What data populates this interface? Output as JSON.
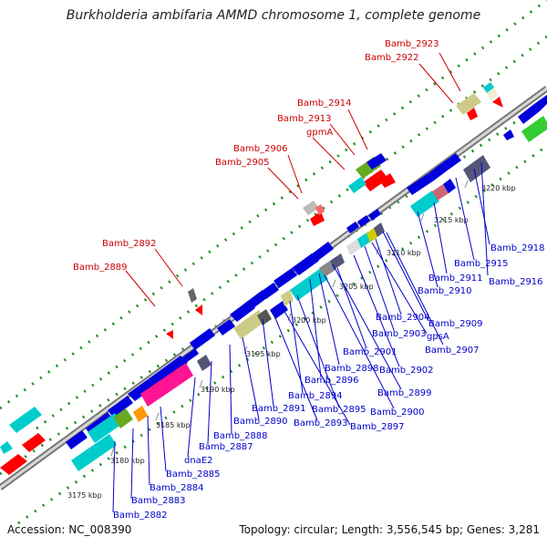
{
  "title": "Burkholderia ambifaria AMMD chromosome 1, complete genome",
  "footer": {
    "accession": "Accession: NC_008390",
    "summary": "Topology: circular; Length: 3,556,545 bp; Genes: 3,281"
  },
  "ticks": [
    "3175 kbp",
    "3180 kbp",
    "3185 kbp",
    "3190 kbp",
    "3195 kbp",
    "3200 kbp",
    "3205 kbp",
    "3210 kbp",
    "3215 kbp",
    "3220 kbp"
  ],
  "labels_top": [
    "Bamb_2923",
    "Bamb_2922",
    "Bamb_2914",
    "Bamb_2913",
    "gpmA",
    "Bamb_2906",
    "Bamb_2905",
    "Bamb_2892",
    "Bamb_2889"
  ],
  "labels_bottom": [
    "Bamb_2918",
    "Bamb_2915",
    "Bamb_2916",
    "Bamb_2911",
    "Bamb_2910",
    "Bamb_2904",
    "Bamb_2909",
    "Bamb_2903",
    "gpsA",
    "Bamb_2907",
    "Bamb_2901",
    "Bamb_2902",
    "Bamb_2898",
    "Bamb_2896",
    "Bamb_2899",
    "Bamb_2894",
    "Bamb_2895",
    "Bamb_2900",
    "Bamb_2891",
    "Bamb_2893",
    "Bamb_2897",
    "Bamb_2890",
    "Bamb_2888",
    "Bamb_2887",
    "dnaE2",
    "Bamb_2885",
    "Bamb_2884",
    "Bamb_2883",
    "Bamb_2882"
  ],
  "colors": {
    "forward_label": "#cc0000",
    "reverse_label": "#0000cc",
    "backbone": "#888888",
    "dots": "#228b22"
  }
}
